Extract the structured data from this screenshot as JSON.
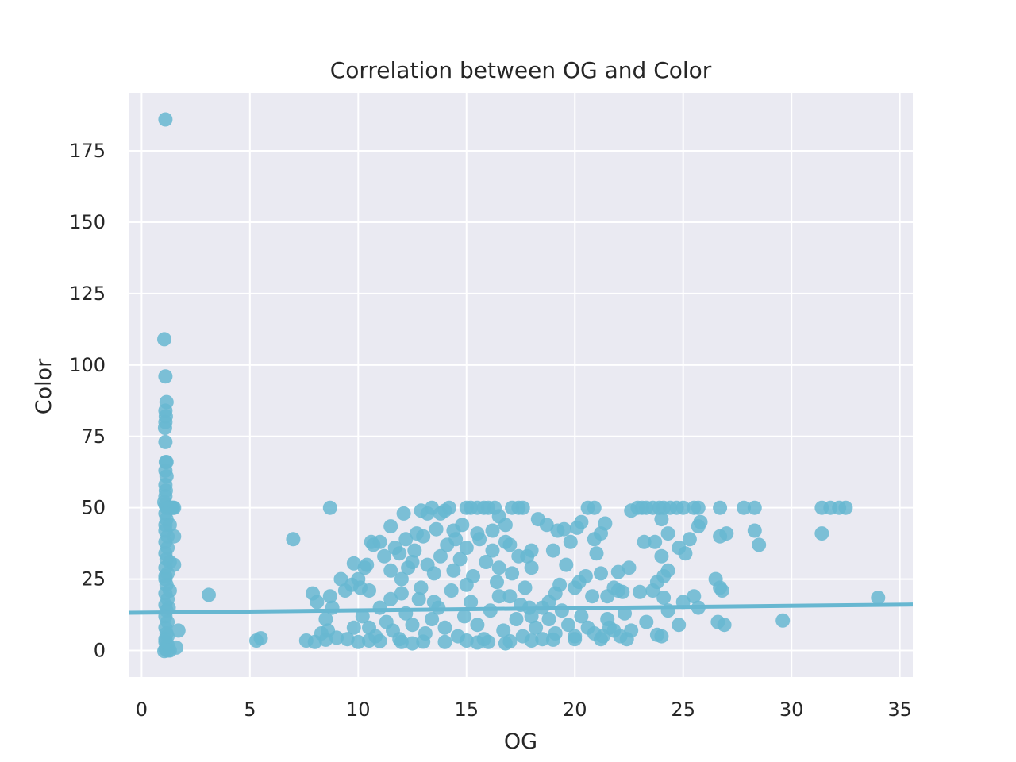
{
  "chart_data": {
    "type": "scatter",
    "title": "Correlation between OG and Color",
    "xlabel": "OG",
    "ylabel": "Color",
    "xlim": [
      -0.6,
      35.6
    ],
    "ylim": [
      -9.3,
      195.3
    ],
    "xticks": [
      0,
      5,
      10,
      15,
      20,
      25,
      30,
      35
    ],
    "yticks": [
      0,
      25,
      50,
      75,
      100,
      125,
      150,
      175
    ],
    "grid": true,
    "legend": "none",
    "colors": {
      "point": "#67b7d1",
      "line": "#67b7d1",
      "background": "#eaeaf2",
      "grid": "#ffffff"
    },
    "regression": {
      "x": [
        -0.6,
        35.6
      ],
      "y": [
        13.2,
        16.1
      ]
    },
    "series": [
      {
        "points": [
          [
            1.1,
            186
          ],
          [
            1.05,
            109
          ],
          [
            1.1,
            96
          ],
          [
            1.15,
            87
          ],
          [
            1.1,
            84
          ],
          [
            1.12,
            82
          ],
          [
            1.1,
            80
          ],
          [
            1.08,
            78
          ],
          [
            1.1,
            73
          ],
          [
            1.12,
            66
          ],
          [
            1.15,
            66
          ],
          [
            1.1,
            63
          ],
          [
            1.15,
            61
          ],
          [
            1.1,
            58
          ],
          [
            1.12,
            56
          ],
          [
            1.1,
            54
          ],
          [
            1.05,
            52
          ],
          [
            1.1,
            51
          ],
          [
            1.15,
            50
          ],
          [
            1.2,
            50
          ],
          [
            1.25,
            50
          ],
          [
            1.3,
            50
          ],
          [
            1.35,
            50
          ],
          [
            1.4,
            50
          ],
          [
            1.45,
            50
          ],
          [
            1.5,
            50
          ],
          [
            1.1,
            48
          ],
          [
            1.15,
            46
          ],
          [
            1.1,
            44
          ],
          [
            1.3,
            44
          ],
          [
            1.1,
            42
          ],
          [
            1.2,
            40
          ],
          [
            1.5,
            40
          ],
          [
            1.1,
            38
          ],
          [
            1.2,
            36
          ],
          [
            1.1,
            34
          ],
          [
            1.15,
            32
          ],
          [
            1.3,
            31
          ],
          [
            1.5,
            30
          ],
          [
            1.1,
            29
          ],
          [
            1.2,
            27
          ],
          [
            1.1,
            25
          ],
          [
            1.15,
            23
          ],
          [
            1.3,
            21
          ],
          [
            1.1,
            20
          ],
          [
            1.2,
            18
          ],
          [
            1.1,
            16
          ],
          [
            1.15,
            14
          ],
          [
            1.1,
            12
          ],
          [
            1.2,
            10
          ],
          [
            1.1,
            8
          ],
          [
            1.7,
            7
          ],
          [
            1.15,
            6
          ],
          [
            1.1,
            4
          ],
          [
            1.2,
            2
          ],
          [
            1.1,
            0.5
          ],
          [
            1.05,
            -0.2
          ],
          [
            1.2,
            0
          ],
          [
            1.3,
            0
          ],
          [
            1.6,
            1
          ],
          [
            1.1,
            3
          ],
          [
            1.25,
            15
          ],
          [
            1.2,
            5
          ],
          [
            1.1,
            26
          ],
          [
            3.1,
            19.5
          ],
          [
            5.3,
            3.5
          ],
          [
            5.5,
            4.3
          ],
          [
            7.0,
            39
          ],
          [
            7.6,
            3.5
          ],
          [
            7.9,
            20
          ],
          [
            8.1,
            17
          ],
          [
            8.3,
            6
          ],
          [
            8.5,
            11
          ],
          [
            8.6,
            7
          ],
          [
            8.7,
            50
          ],
          [
            8.7,
            19
          ],
          [
            8.8,
            15
          ],
          [
            9.2,
            25
          ],
          [
            9.4,
            21
          ],
          [
            9.7,
            23
          ],
          [
            9.8,
            30.5
          ],
          [
            10.0,
            25
          ],
          [
            10.1,
            22
          ],
          [
            10.3,
            29
          ],
          [
            10.4,
            30
          ],
          [
            10.5,
            21
          ],
          [
            10.6,
            38
          ],
          [
            10.7,
            37
          ],
          [
            11.0,
            38
          ],
          [
            11.2,
            33
          ],
          [
            11.5,
            28
          ],
          [
            11.5,
            43.5
          ],
          [
            11.7,
            36
          ],
          [
            11.9,
            34
          ],
          [
            12.1,
            48
          ],
          [
            12.2,
            39
          ],
          [
            12.5,
            31
          ],
          [
            12.7,
            41
          ],
          [
            12.9,
            49
          ],
          [
            13.2,
            48
          ],
          [
            13.4,
            50
          ],
          [
            13.6,
            42.5
          ],
          [
            13.8,
            48
          ],
          [
            14.0,
            49
          ],
          [
            14.2,
            50
          ],
          [
            14.4,
            42
          ],
          [
            14.8,
            44
          ],
          [
            15.0,
            50
          ],
          [
            15.2,
            50
          ],
          [
            15.5,
            50
          ],
          [
            15.8,
            50
          ],
          [
            16.0,
            50
          ],
          [
            16.3,
            50
          ],
          [
            16.5,
            47
          ],
          [
            16.8,
            44
          ],
          [
            17.1,
            50
          ],
          [
            17.4,
            50
          ],
          [
            17.6,
            50
          ],
          [
            17.8,
            33
          ],
          [
            18.0,
            29
          ],
          [
            18.3,
            46
          ],
          [
            18.7,
            44
          ],
          [
            19.0,
            35
          ],
          [
            19.2,
            42
          ],
          [
            19.5,
            42.5
          ],
          [
            19.8,
            38
          ],
          [
            20.1,
            43
          ],
          [
            20.3,
            45
          ],
          [
            20.6,
            50
          ],
          [
            20.9,
            50
          ],
          [
            20.9,
            39
          ],
          [
            21.0,
            34
          ],
          [
            21.2,
            41
          ],
          [
            21.4,
            44.5
          ],
          [
            21.2,
            27
          ],
          [
            21.5,
            19
          ],
          [
            21.8,
            22
          ],
          [
            22.0,
            27.5
          ],
          [
            22.3,
            13
          ],
          [
            22.5,
            29
          ],
          [
            22.6,
            49
          ],
          [
            22.9,
            50
          ],
          [
            23.1,
            50
          ],
          [
            23.3,
            50
          ],
          [
            23.6,
            50
          ],
          [
            23.9,
            50
          ],
          [
            24.1,
            50
          ],
          [
            24.4,
            50
          ],
          [
            24.7,
            50
          ],
          [
            25.0,
            50
          ],
          [
            25.5,
            50
          ],
          [
            25.7,
            50
          ],
          [
            25.8,
            45
          ],
          [
            25.7,
            43.5
          ],
          [
            25.3,
            39
          ],
          [
            25.1,
            34
          ],
          [
            24.8,
            36
          ],
          [
            24.3,
            41
          ],
          [
            24.0,
            46
          ],
          [
            23.7,
            38
          ],
          [
            23.2,
            38
          ],
          [
            24.0,
            33
          ],
          [
            24.1,
            26
          ],
          [
            24.3,
            28
          ],
          [
            24.1,
            18.5
          ],
          [
            24.3,
            14
          ],
          [
            25.5,
            19
          ],
          [
            25.7,
            15
          ],
          [
            25.0,
            17
          ],
          [
            24.8,
            9
          ],
          [
            24.0,
            5
          ],
          [
            23.8,
            5.5
          ],
          [
            23.3,
            10
          ],
          [
            23.0,
            20.5
          ],
          [
            23.6,
            21
          ],
          [
            23.8,
            24
          ],
          [
            22.0,
            21
          ],
          [
            22.4,
            4
          ],
          [
            22.6,
            7
          ],
          [
            22.2,
            20.5
          ],
          [
            21.6,
            8
          ],
          [
            21.3,
            5
          ],
          [
            20.8,
            19
          ],
          [
            20.5,
            26
          ],
          [
            20.2,
            24
          ],
          [
            20.0,
            22
          ],
          [
            19.6,
            30
          ],
          [
            19.3,
            23
          ],
          [
            19.1,
            20
          ],
          [
            18.8,
            17
          ],
          [
            18.5,
            15
          ],
          [
            18.0,
            12
          ],
          [
            26.5,
            25
          ],
          [
            26.6,
            10
          ],
          [
            26.7,
            22
          ],
          [
            26.8,
            21
          ],
          [
            26.9,
            9
          ],
          [
            26.7,
            40
          ],
          [
            27.0,
            41
          ],
          [
            26.7,
            50
          ],
          [
            27.8,
            50
          ],
          [
            28.3,
            50
          ],
          [
            28.3,
            42
          ],
          [
            28.5,
            37
          ],
          [
            29.6,
            10.5
          ],
          [
            31.4,
            50
          ],
          [
            31.4,
            41
          ],
          [
            31.8,
            50
          ],
          [
            32.2,
            50
          ],
          [
            32.5,
            50
          ],
          [
            34.0,
            18.5
          ],
          [
            10.2,
            12
          ],
          [
            10.5,
            8
          ],
          [
            10.8,
            5
          ],
          [
            11.0,
            15
          ],
          [
            11.3,
            10
          ],
          [
            11.6,
            7
          ],
          [
            11.9,
            4
          ],
          [
            12.2,
            13
          ],
          [
            12.5,
            9
          ],
          [
            12.8,
            18
          ],
          [
            13.1,
            6
          ],
          [
            13.4,
            11
          ],
          [
            13.7,
            15
          ],
          [
            14.0,
            8
          ],
          [
            14.3,
            21
          ],
          [
            14.6,
            5
          ],
          [
            14.9,
            12
          ],
          [
            15.2,
            17
          ],
          [
            15.5,
            9
          ],
          [
            15.8,
            4
          ],
          [
            16.1,
            14
          ],
          [
            16.4,
            24
          ],
          [
            16.7,
            7
          ],
          [
            17.0,
            19
          ],
          [
            17.3,
            11
          ],
          [
            17.6,
            5
          ],
          [
            17.9,
            15
          ],
          [
            18.2,
            8
          ],
          [
            18.5,
            4
          ],
          [
            18.8,
            11
          ],
          [
            19.1,
            6
          ],
          [
            19.4,
            14
          ],
          [
            19.7,
            9
          ],
          [
            20.0,
            5
          ],
          [
            20.3,
            12
          ],
          [
            20.6,
            8
          ],
          [
            20.9,
            6
          ],
          [
            21.2,
            4
          ],
          [
            21.5,
            11
          ],
          [
            21.8,
            7
          ],
          [
            22.1,
            5
          ],
          [
            9.5,
            4
          ],
          [
            9.8,
            8
          ],
          [
            10.0,
            3
          ],
          [
            11.5,
            18
          ],
          [
            12.0,
            25
          ],
          [
            12.3,
            29
          ],
          [
            12.6,
            35
          ],
          [
            12.9,
            22
          ],
          [
            13.2,
            30
          ],
          [
            13.5,
            27
          ],
          [
            13.8,
            33
          ],
          [
            14.1,
            37
          ],
          [
            14.4,
            28
          ],
          [
            14.7,
            32
          ],
          [
            15.0,
            36
          ],
          [
            15.3,
            26
          ],
          [
            15.6,
            39
          ],
          [
            15.9,
            31
          ],
          [
            16.2,
            35
          ],
          [
            16.5,
            29
          ],
          [
            16.8,
            38
          ],
          [
            17.1,
            27
          ],
          [
            17.4,
            33
          ],
          [
            17.7,
            22
          ],
          [
            13.0,
            40
          ],
          [
            14.5,
            39
          ],
          [
            15.5,
            41
          ],
          [
            16.2,
            42
          ],
          [
            17.0,
            37
          ],
          [
            18.0,
            35
          ],
          [
            12.0,
            20
          ],
          [
            13.5,
            17
          ],
          [
            15.0,
            23
          ],
          [
            16.5,
            19
          ],
          [
            17.5,
            16
          ],
          [
            14.0,
            3
          ],
          [
            15.0,
            3.5
          ],
          [
            16.0,
            3
          ],
          [
            17.0,
            3.2
          ],
          [
            18.0,
            3.5
          ],
          [
            19.0,
            3.8
          ],
          [
            12.0,
            3
          ],
          [
            11.0,
            3.3
          ],
          [
            13.0,
            3.1
          ],
          [
            20.0,
            4
          ],
          [
            10.5,
            3.5
          ],
          [
            9.0,
            4.5
          ],
          [
            8.5,
            3.8
          ],
          [
            8.0,
            3
          ],
          [
            12.5,
            2.5
          ],
          [
            15.5,
            2.8
          ],
          [
            16.8,
            2.5
          ]
        ]
      }
    ]
  }
}
